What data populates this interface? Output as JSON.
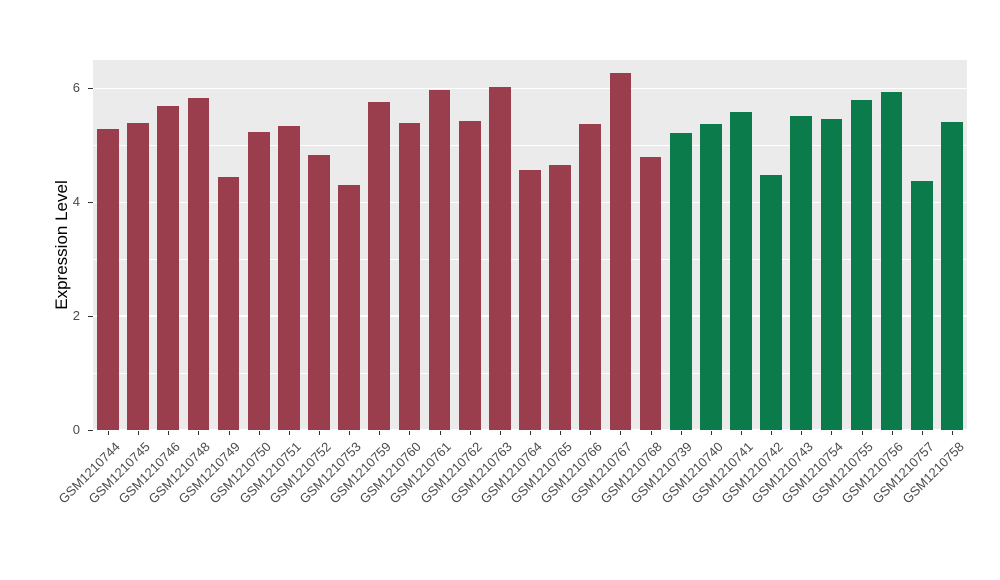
{
  "chart_data": {
    "type": "bar",
    "title": "",
    "xlabel": "",
    "ylabel": "Expression Level",
    "ylim": [
      0,
      6.5
    ],
    "yticks": [
      0,
      2,
      4,
      6
    ],
    "grid": {
      "major": [
        0,
        2,
        4,
        6
      ],
      "minor": [
        1,
        3,
        5
      ]
    },
    "legend": "none",
    "colors": {
      "red": "#9A3D4D",
      "green": "#0B7B4C",
      "plot_background": "#EBEBEB",
      "gridline": "#FFFFFF"
    },
    "bars": [
      {
        "label": "GSM1210744",
        "value": 5.29,
        "group": "red"
      },
      {
        "label": "GSM1210745",
        "value": 5.4,
        "group": "red"
      },
      {
        "label": "GSM1210746",
        "value": 5.7,
        "group": "red"
      },
      {
        "label": "GSM1210748",
        "value": 5.83,
        "group": "red"
      },
      {
        "label": "GSM1210749",
        "value": 4.45,
        "group": "red"
      },
      {
        "label": "GSM1210750",
        "value": 5.24,
        "group": "red"
      },
      {
        "label": "GSM1210751",
        "value": 5.34,
        "group": "red"
      },
      {
        "label": "GSM1210752",
        "value": 4.83,
        "group": "red"
      },
      {
        "label": "GSM1210753",
        "value": 4.31,
        "group": "red"
      },
      {
        "label": "GSM1210759",
        "value": 5.77,
        "group": "red"
      },
      {
        "label": "GSM1210760",
        "value": 5.4,
        "group": "red"
      },
      {
        "label": "GSM1210761",
        "value": 5.98,
        "group": "red"
      },
      {
        "label": "GSM1210762",
        "value": 5.43,
        "group": "red"
      },
      {
        "label": "GSM1210763",
        "value": 6.02,
        "group": "red"
      },
      {
        "label": "GSM1210764",
        "value": 4.56,
        "group": "red"
      },
      {
        "label": "GSM1210765",
        "value": 4.66,
        "group": "red"
      },
      {
        "label": "GSM1210766",
        "value": 5.38,
        "group": "red"
      },
      {
        "label": "GSM1210767",
        "value": 6.28,
        "group": "red"
      },
      {
        "label": "GSM1210768",
        "value": 4.79,
        "group": "red"
      },
      {
        "label": "GSM1210739",
        "value": 5.22,
        "group": "green"
      },
      {
        "label": "GSM1210740",
        "value": 5.37,
        "group": "green"
      },
      {
        "label": "GSM1210741",
        "value": 5.58,
        "group": "green"
      },
      {
        "label": "GSM1210742",
        "value": 4.48,
        "group": "green"
      },
      {
        "label": "GSM1210743",
        "value": 5.52,
        "group": "green"
      },
      {
        "label": "GSM1210754",
        "value": 5.46,
        "group": "green"
      },
      {
        "label": "GSM1210755",
        "value": 5.79,
        "group": "green"
      },
      {
        "label": "GSM1210756",
        "value": 5.93,
        "group": "green"
      },
      {
        "label": "GSM1210757",
        "value": 4.38,
        "group": "green"
      },
      {
        "label": "GSM1210758",
        "value": 5.41,
        "group": "green"
      }
    ]
  }
}
